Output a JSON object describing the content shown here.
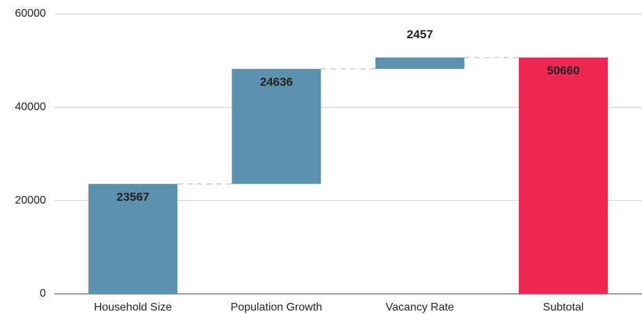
{
  "chart_data": {
    "type": "waterfall",
    "categories": [
      "Household Size",
      "Population Growth",
      "Vacancy Rate",
      "Subtotal"
    ],
    "values": [
      23567,
      24636,
      2457,
      50660
    ],
    "is_total": [
      false,
      false,
      false,
      true
    ],
    "colors": [
      "#5b91ad",
      "#5b91ad",
      "#5b91ad",
      "#ef2651"
    ],
    "label_colors": [
      "#111111",
      "#111111",
      "#5b91ad",
      "#ffffff"
    ],
    "ylim": [
      0,
      60000
    ],
    "yticks": [
      0,
      20000,
      40000,
      60000
    ],
    "grid": true
  }
}
